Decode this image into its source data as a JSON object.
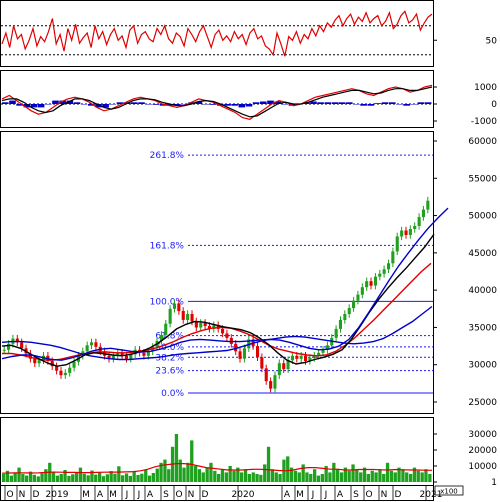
{
  "chart_data": {
    "type": "line",
    "panels": [
      {
        "id": "rsi",
        "y_ticks": [
          {
            "label": "50",
            "value": 50
          }
        ],
        "guide_levels": [
          70,
          30
        ],
        "series": [
          {
            "color": "#e00000",
            "values": [
              45,
              60,
              40,
              70,
              52,
              58,
              38,
              50,
              66,
              42,
              55,
              48,
              62,
              80,
              45,
              58,
              35,
              66,
              50,
              72,
              46,
              54,
              60,
              40,
              70,
              52,
              62,
              44,
              58,
              66,
              50,
              56,
              40,
              64,
              70,
              46,
              58,
              62,
              52,
              48,
              66,
              58,
              70,
              52,
              46,
              60,
              55,
              42,
              66,
              58,
              48,
              62,
              70,
              55,
              40,
              58,
              64,
              50,
              56,
              48,
              62,
              52,
              58,
              44,
              60,
              66,
              52,
              56,
              42,
              38,
              30,
              60,
              45,
              28,
              55,
              50,
              62,
              46,
              58,
              52,
              66,
              56,
              70,
              62,
              74,
              68,
              78,
              84,
              70,
              80,
              86,
              72,
              82,
              76,
              88,
              74,
              80,
              84,
              70,
              76,
              88,
              66,
              72,
              84,
              90,
              74,
              78,
              86,
              64,
              74,
              82,
              86
            ]
          }
        ]
      },
      {
        "id": "macd",
        "y_ticks": [
          {
            "label": "1000",
            "value": 1000
          },
          {
            "label": "0",
            "value": 0
          },
          {
            "label": "-1000",
            "value": -1000
          }
        ],
        "series": [
          {
            "color": "#e00000",
            "values": [
              300,
              500,
              200,
              -100,
              -400,
              -600,
              -500,
              -200,
              100,
              300,
              400,
              300,
              100,
              -200,
              -400,
              -300,
              -100,
              100,
              300,
              400,
              300,
              200,
              0,
              -100,
              -200,
              -100,
              100,
              300,
              200,
              100,
              -100,
              -300,
              -500,
              -800,
              -900,
              -600,
              -300,
              0,
              200,
              100,
              -100,
              0,
              200,
              400,
              500,
              600,
              700,
              800,
              900,
              800,
              600,
              500,
              700,
              900,
              1000,
              900,
              700,
              800,
              1000,
              1100
            ]
          },
          {
            "color": "#000000",
            "values": [
              200,
              300,
              300,
              100,
              -200,
              -400,
              -500,
              -400,
              -100,
              100,
              300,
              300,
              200,
              0,
              -200,
              -300,
              -200,
              0,
              200,
              300,
              300,
              250,
              100,
              0,
              -100,
              -100,
              0,
              150,
              200,
              150,
              0,
              -200,
              -400,
              -600,
              -750,
              -700,
              -450,
              -200,
              50,
              100,
              0,
              0,
              100,
              250,
              400,
              500,
              600,
              700,
              800,
              800,
              700,
              600,
              650,
              800,
              900,
              900,
              800,
              800,
              900,
              1000
            ]
          }
        ],
        "histogram": {
          "color": "#0000cc",
          "values": [
            100,
            200,
            -100,
            -200,
            -200,
            -200,
            0,
            200,
            200,
            200,
            100,
            0,
            -100,
            -200,
            -200,
            0,
            100,
            100,
            100,
            100,
            0,
            -50,
            -100,
            -100,
            -100,
            0,
            100,
            150,
            0,
            -50,
            -100,
            -100,
            -100,
            -200,
            -150,
            100,
            150,
            200,
            150,
            0,
            -100,
            0,
            100,
            150,
            100,
            100,
            100,
            100,
            100,
            0,
            -100,
            -100,
            50,
            100,
            100,
            0,
            -100,
            0,
            100,
            100
          ]
        }
      },
      {
        "id": "price",
        "y_ticks": [
          {
            "label": "60000",
            "value": 60000
          },
          {
            "label": "55000",
            "value": 55000
          },
          {
            "label": "50000",
            "value": 50000
          },
          {
            "label": "45000",
            "value": 45000
          },
          {
            "label": "40000",
            "value": 40000
          },
          {
            "label": "35000",
            "value": 35000
          },
          {
            "label": "30000",
            "value": 30000
          },
          {
            "label": "25000",
            "value": 25000
          }
        ],
        "fibonacci": [
          {
            "label": "261.8%",
            "value": 58100
          },
          {
            "label": "161.8%",
            "value": 46000
          },
          {
            "label": "100.0%",
            "value": 38500
          },
          {
            "label": "61.8%",
            "value": 33900
          },
          {
            "label": "50.0%",
            "value": 32400
          },
          {
            "label": "38.2%",
            "value": 31000
          },
          {
            "label": "23.6%",
            "value": 29200
          },
          {
            "label": "0.0%",
            "value": 26200
          }
        ],
        "closes": [
          32000,
          32800,
          33500,
          33000,
          32200,
          31500,
          30800,
          30200,
          30600,
          31200,
          30500,
          29800,
          29200,
          28600,
          28900,
          29600,
          30400,
          31200,
          31800,
          32600,
          33000,
          32400,
          31800,
          31200,
          30800,
          31200,
          31600,
          31200,
          30800,
          31400,
          32000,
          31600,
          31200,
          31800,
          32400,
          33200,
          34000,
          35500,
          37500,
          38200,
          37200,
          36000,
          36800,
          35800,
          35000,
          35600,
          35200,
          34800,
          35300,
          34800,
          34200,
          33600,
          32800,
          31800,
          30800,
          32200,
          33400,
          32500,
          31000,
          29500,
          27800,
          26800,
          28600,
          30200,
          29400,
          30600,
          31200,
          30800,
          31200,
          30500,
          30900,
          31200,
          31600,
          32000,
          32600,
          33600,
          34800,
          36000,
          36800,
          37600,
          38600,
          39400,
          40400,
          41200,
          40600,
          41800,
          42200,
          42800,
          43600,
          45200,
          47200,
          48000,
          47400,
          48200,
          48600,
          49800,
          50800,
          52000
        ],
        "ma_lines": [
          {
            "color": "#0000cc",
            "values": [
              33000,
              33100,
              33100,
              33000,
              32800,
              32600,
              32300,
              31900,
              31500,
              31200,
              31000,
              30800,
              30700,
              30700,
              30800,
              30900,
              31000,
              31200,
              31400,
              31500,
              31600,
              31700,
              31800,
              31900,
              32200,
              32600,
              33000,
              33300,
              33500,
              33700,
              33800,
              33700,
              33500,
              33300,
              33100,
              32900,
              32800,
              32900,
              33100,
              33500,
              34200,
              35000,
              35800,
              36800,
              37800
            ]
          },
          {
            "color": "#e00000",
            "values": [
              31500,
              31500,
              31300,
              31000,
              30700,
              30600,
              30700,
              31000,
              31300,
              31500,
              31700,
              31700,
              31600,
              31600,
              31700,
              31900,
              32200,
              32600,
              33100,
              33700,
              34200,
              34600,
              34900,
              35000,
              34900,
              34500,
              34000,
              33300,
              32600,
              32100,
              31800,
              31500,
              31300,
              31200,
              31300,
              31800,
              32600,
              33600,
              34800,
              36000,
              37300,
              38600,
              39900,
              41200,
              42500,
              43600
            ]
          },
          {
            "color": "#000000",
            "values": [
              32500,
              32600,
              32200,
              31500,
              30800,
              30200,
              29800,
              30000,
              30600,
              31300,
              31600,
              31500,
              31300,
              31200,
              31400,
              31700,
              32200,
              32900,
              33800,
              34800,
              35400,
              35800,
              35700,
              35400,
              35100,
              34900,
              34700,
              34300,
              33600,
              32700,
              31600,
              30600,
              30100,
              30300,
              30700,
              31000,
              31400,
              32000,
              33400,
              35200,
              37100,
              38800,
              40300,
              41700,
              43000,
              44400,
              45800,
              47500
            ]
          },
          {
            "color": "#0000cc",
            "values": [
              30800,
              31100,
              31300,
              31300,
              31000,
              30700,
              30600,
              30900,
              31300,
              31800,
              32100,
              32200,
              32000,
              31800,
              31700,
              31800,
              32100,
              32500,
              33000,
              33300,
              33400,
              33300,
              33200,
              33100,
              33100,
              33200,
              33300,
              33400,
              33300,
              33000,
              32600,
              32200,
              32000,
              32100,
              32500,
              33400,
              35000,
              37000,
              39100,
              41200,
              43200,
              45000,
              46700,
              48300,
              49700,
              51000
            ]
          }
        ]
      },
      {
        "id": "volume",
        "y_ticks": [
          {
            "label": "30000",
            "value": 30000
          },
          {
            "label": "20000",
            "value": 20000
          },
          {
            "label": "10000",
            "value": 10000
          },
          {
            "label": "1",
            "value": 1
          }
        ],
        "unit_label": "x100",
        "bar_color": "#1fa01f",
        "values": [
          5000,
          7000,
          4000,
          6000,
          9000,
          5000,
          4000,
          6500,
          4500,
          3500,
          5500,
          8000,
          12000,
          6000,
          4000,
          5000,
          7500,
          3800,
          4800,
          6200,
          9000,
          5200,
          4200,
          7200,
          4600,
          5800,
          3600,
          4800,
          6800,
          5200,
          9800,
          4200,
          5400,
          3800,
          6600,
          4400,
          5200,
          7600,
          4000,
          5600,
          8400,
          12000,
          14000,
          8000,
          22000,
          30000,
          14000,
          9000,
          12000,
          26000,
          10000,
          8000,
          6000,
          9000,
          12000,
          7000,
          5000,
          8000,
          6000,
          10000,
          7000,
          9000,
          6000,
          8000,
          5000,
          6000,
          5000,
          4500,
          11000,
          22000,
          8000,
          6000,
          5000,
          14000,
          16000,
          9000,
          7000,
          6000,
          11000,
          6000,
          5000,
          8000,
          4000,
          5000,
          10000,
          6000,
          12000,
          8000,
          6000,
          9000,
          7000,
          11000,
          8000,
          6000,
          9000,
          5000,
          7000,
          6000,
          8000,
          5000,
          12000,
          7000,
          6000,
          9000,
          8000,
          6000,
          5000,
          9000,
          7000,
          6000,
          8000,
          5000
        ],
        "ma": {
          "color": "#e00000",
          "values": [
            5500,
            5600,
            5700,
            5700,
            5600,
            5700,
            6000,
            6200,
            6100,
            6000,
            6000,
            5900,
            5900,
            6000,
            6100,
            6200,
            6200,
            6300,
            6500,
            7000,
            8000,
            9500,
            10500,
            11000,
            11500,
            11500,
            11000,
            10000,
            9000,
            8500,
            8000,
            7500,
            7500,
            7500,
            7800,
            8000,
            7800,
            7500,
            7200,
            7000,
            7500,
            8500,
            9000,
            9000,
            8500,
            8000,
            8000,
            7500,
            7500,
            7800,
            7800,
            7800,
            7600,
            7500,
            7800,
            7600,
            7500,
            7500,
            7400,
            7300
          ]
        }
      }
    ],
    "x_ticks": [
      {
        "label": "O",
        "x": 10
      },
      {
        "label": "N",
        "x": 22
      },
      {
        "label": "D",
        "x": 36
      },
      {
        "label": "2019",
        "x": 57
      },
      {
        "label": "M",
        "x": 86
      },
      {
        "label": "A",
        "x": 100
      },
      {
        "label": "M",
        "x": 113
      },
      {
        "label": "J",
        "x": 127
      },
      {
        "label": "J",
        "x": 139
      },
      {
        "label": "A",
        "x": 150
      },
      {
        "label": "S",
        "x": 166
      },
      {
        "label": "O",
        "x": 179
      },
      {
        "label": "N",
        "x": 191
      },
      {
        "label": "D",
        "x": 205
      },
      {
        "label": "2020",
        "x": 243
      },
      {
        "label": "A",
        "x": 287
      },
      {
        "label": "M",
        "x": 300
      },
      {
        "label": "J",
        "x": 313
      },
      {
        "label": "J",
        "x": 326
      },
      {
        "label": "A",
        "x": 340
      },
      {
        "label": "S",
        "x": 356
      },
      {
        "label": "O",
        "x": 369
      },
      {
        "label": "N",
        "x": 384
      },
      {
        "label": "D",
        "x": 398
      },
      {
        "label": "2021",
        "x": 431
      }
    ]
  }
}
